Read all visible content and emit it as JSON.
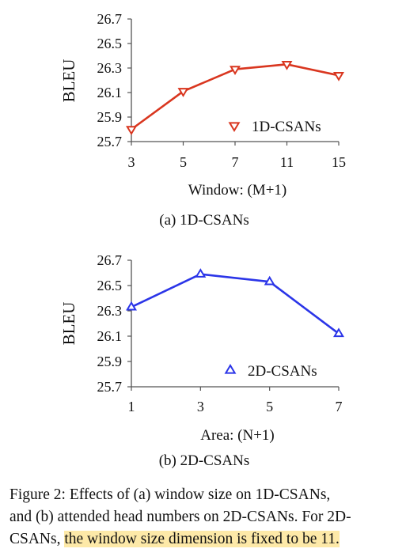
{
  "chart_data": [
    {
      "type": "line",
      "title": "",
      "xlabel": "Window: (M+1)",
      "ylabel": "BLEU",
      "categories": [
        "3",
        "5",
        "7",
        "11",
        "15"
      ],
      "yticks": [
        "26.7",
        "26.5",
        "26.3",
        "26.1",
        "25.9",
        "25.7"
      ],
      "ylim": [
        25.7,
        26.7
      ],
      "grid": false,
      "legend_position": "bottom-right",
      "series": [
        {
          "name": "1D-CSANs",
          "values": [
            25.8,
            26.11,
            26.29,
            26.33,
            26.24
          ],
          "marker": "triangle-down",
          "color": "#d9361f"
        }
      ],
      "subcaption": "(a) 1D-CSANs"
    },
    {
      "type": "line",
      "title": "",
      "xlabel": "Area: (N+1)",
      "ylabel": "BLEU",
      "categories": [
        "1",
        "3",
        "5",
        "7"
      ],
      "yticks": [
        "26.7",
        "26.5",
        "26.3",
        "26.1",
        "25.9",
        "25.7"
      ],
      "ylim": [
        25.7,
        26.7
      ],
      "grid": false,
      "legend_position": "bottom-right",
      "series": [
        {
          "name": "2D-CSANs",
          "values": [
            26.33,
            26.59,
            26.53,
            26.12
          ],
          "marker": "triangle-up",
          "color": "#2b35e8"
        }
      ],
      "subcaption": "(b) 2D-CSANs"
    }
  ],
  "caption": {
    "line1": "Figure 2: Effects of (a) window size on 1D-CSANs,",
    "line2": "and (b) attended head numbers on 2D-CSANs. For 2D-",
    "line3_plain": "CSANs, ",
    "line3_highlight": "the window size dimension is fixed to be 11."
  }
}
